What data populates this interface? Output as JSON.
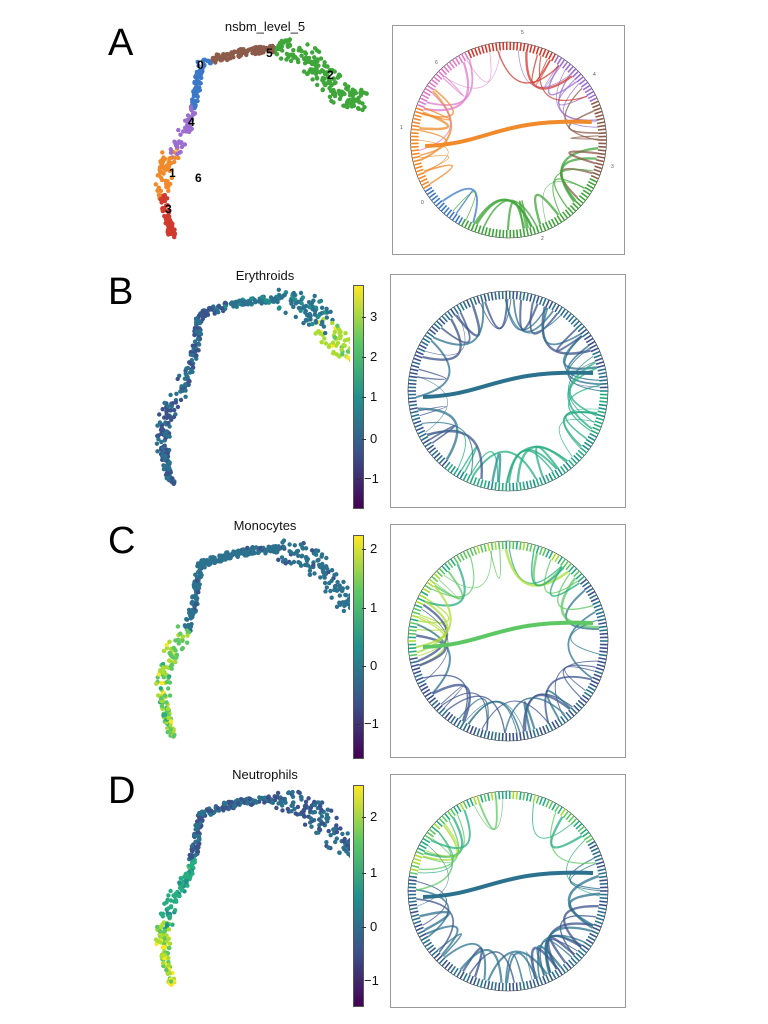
{
  "figure": {
    "panels": [
      {
        "letter": "A",
        "title": "nsbm_level_5",
        "type": "clusters",
        "cluster_labels": [
          "0",
          "1",
          "2",
          "3",
          "4",
          "5",
          "6"
        ],
        "cluster_colors": {
          "0": "#3c78c8",
          "1": "#f08a2a",
          "2": "#3fa63a",
          "3": "#d13a2e",
          "4": "#9b6fcf",
          "5": "#8c5b4a",
          "6": "#e07ac8"
        },
        "circle_labels": [
          "0",
          "1",
          "2",
          "3",
          "4",
          "5",
          "6"
        ]
      },
      {
        "letter": "B",
        "title": "Erythroids",
        "type": "score",
        "colorbar_ticks": [
          "3",
          "2",
          "1",
          "0",
          "−1"
        ]
      },
      {
        "letter": "C",
        "title": "Monocytes",
        "type": "score",
        "colorbar_ticks": [
          "2",
          "1",
          "0",
          "−1"
        ]
      },
      {
        "letter": "D",
        "title": "Neutrophils",
        "type": "score",
        "colorbar_ticks": [
          "2",
          "1",
          "0",
          "−1"
        ]
      }
    ]
  }
}
